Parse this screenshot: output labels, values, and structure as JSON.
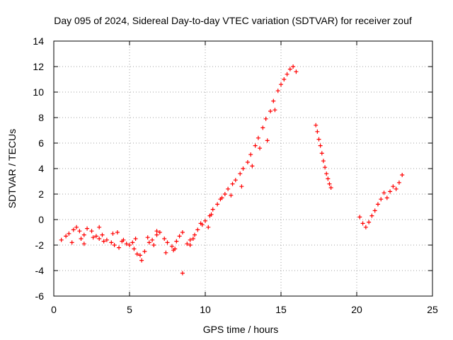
{
  "chart_data": {
    "type": "scatter",
    "title": "Day 095 of 2024, Sidereal Day-to-day VTEC variation (SDTVAR) for receiver zouf",
    "xlabel": "GPS time / hours",
    "ylabel": "SDTVAR / TECUs",
    "xlim": [
      0,
      25
    ],
    "ylim": [
      -6,
      14
    ],
    "xticks": [
      0,
      5,
      10,
      15,
      20,
      25
    ],
    "xtick_labels": [
      "0",
      "5",
      "10",
      "15",
      "20",
      "25"
    ],
    "yticks": [
      -6,
      -4,
      -2,
      0,
      2,
      4,
      6,
      8,
      10,
      12,
      14
    ],
    "ytick_labels": [
      "-6",
      "-4",
      "-2",
      "0",
      "2",
      "4",
      "6",
      "8",
      "10",
      "12",
      "14"
    ],
    "grid": true,
    "marker": "+",
    "color": "#ff0000",
    "series": [
      {
        "name": "SDTVAR",
        "x": [
          0.5,
          0.8,
          1.0,
          1.3,
          1.5,
          1.7,
          1.8,
          2.0,
          2.2,
          2.5,
          2.8,
          3.0,
          3.3,
          3.5,
          3.8,
          4.0,
          4.3,
          4.5,
          4.8,
          5.0,
          5.3,
          5.5,
          5.8,
          6.0,
          6.3,
          6.5,
          6.8,
          7.0,
          7.3,
          7.5,
          7.8,
          8.0,
          8.3,
          8.5,
          8.8,
          9.0,
          9.3,
          9.5,
          9.8,
          10.0,
          10.3,
          10.5,
          10.8,
          11.0,
          11.3,
          11.5,
          11.8,
          12.0,
          12.3,
          12.5,
          12.8,
          13.0,
          13.3,
          13.5,
          13.8,
          14.0,
          14.3,
          14.5,
          14.8,
          15.0,
          15.2,
          15.4,
          15.6,
          15.8,
          16.0,
          17.3,
          17.4,
          17.5,
          17.6,
          17.7,
          17.8,
          17.9,
          18.0,
          18.1,
          18.2,
          18.3,
          20.2,
          20.4,
          20.6,
          20.8,
          21.0,
          21.2,
          21.4,
          21.6,
          21.8,
          22.0,
          22.2,
          22.4,
          22.6,
          22.8,
          23.0,
          1.2,
          2.0,
          2.6,
          3.2,
          3.9,
          4.6,
          5.2,
          5.7,
          6.2,
          6.8,
          7.4,
          8.1,
          8.5,
          9.2,
          9.7,
          10.4,
          11.1,
          11.7,
          12.4,
          13.1,
          13.6,
          14.1,
          14.6,
          3.0,
          4.2,
          5.4,
          6.6,
          7.9,
          9.0,
          10.2
        ],
        "y": [
          -1.6,
          -1.3,
          -1.1,
          -0.8,
          -0.6,
          -0.9,
          -1.5,
          -1.2,
          -0.7,
          -0.9,
          -1.3,
          -1.5,
          -1.7,
          -1.6,
          -1.8,
          -2.0,
          -2.2,
          -1.7,
          -1.9,
          -2.0,
          -2.3,
          -2.7,
          -3.2,
          -2.5,
          -1.8,
          -1.6,
          -1.2,
          -1.0,
          -1.5,
          -1.8,
          -2.1,
          -2.3,
          -1.3,
          -4.2,
          -1.9,
          -1.6,
          -1.2,
          -0.8,
          -0.4,
          -0.1,
          0.3,
          0.8,
          1.2,
          1.6,
          2.0,
          2.4,
          2.8,
          3.1,
          3.6,
          4.0,
          4.5,
          5.1,
          5.8,
          6.4,
          7.2,
          7.9,
          8.5,
          9.3,
          10.1,
          10.6,
          11.0,
          11.4,
          11.8,
          12.0,
          11.6,
          7.4,
          6.9,
          6.3,
          5.8,
          5.2,
          4.6,
          4.1,
          3.6,
          3.2,
          2.8,
          2.5,
          0.2,
          -0.3,
          -0.6,
          -0.2,
          0.3,
          0.7,
          1.2,
          1.6,
          2.1,
          1.7,
          2.2,
          2.6,
          2.4,
          2.9,
          3.5,
          -1.8,
          -1.9,
          -1.4,
          -1.2,
          -1.1,
          -1.6,
          -1.8,
          -2.8,
          -1.4,
          -0.9,
          -2.6,
          -1.7,
          -1.0,
          -1.5,
          -0.3,
          0.4,
          1.7,
          1.9,
          2.6,
          4.2,
          5.6,
          6.2,
          8.6,
          -0.6,
          -1.0,
          -1.5,
          -2.0,
          -2.4,
          -2.0,
          -0.6
        ]
      }
    ]
  }
}
